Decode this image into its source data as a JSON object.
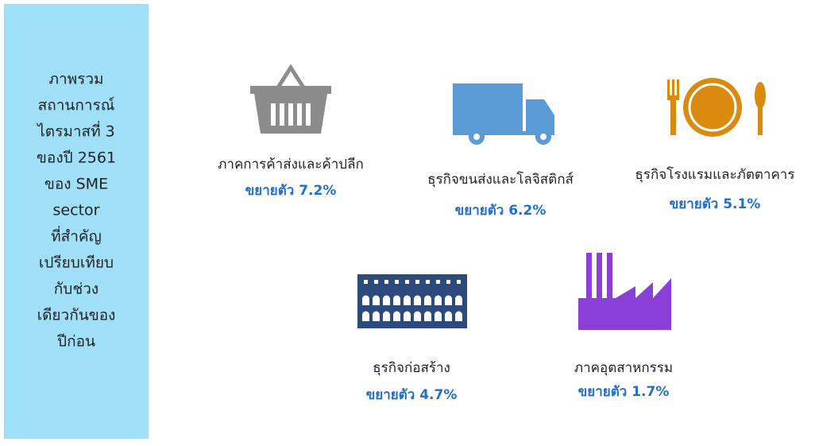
{
  "sidebar": {
    "lines": [
      "ภาพรวม",
      "สถานการณ์",
      "ไตรมาสที่ 3",
      "ของปี 2561",
      "ของ SME",
      "sector",
      "ที่สำคัญ",
      "เปรียบเทียบ",
      "กับช่วง",
      "เดียวกันของ",
      "ปีก่อน"
    ]
  },
  "items": [
    {
      "label": "ภาคการค้าส่งและค้าปลีก",
      "growth": "ขยายตัว 7.2%"
    },
    {
      "label": "ธุรกิจขนส่งและโลจิสติกส์",
      "growth": "ขยายตัว 6.2%"
    },
    {
      "label": "ธุรกิจโรงแรมและภัตตาคาร",
      "growth": "ขยายตัว 5.1%"
    },
    {
      "label": "ธุรกิจก่อสร้าง",
      "growth": "ขยายตัว 4.7%"
    },
    {
      "label": "ภาคอุตสาหกรรม",
      "growth": "ขยายตัว 1.7%"
    }
  ]
}
